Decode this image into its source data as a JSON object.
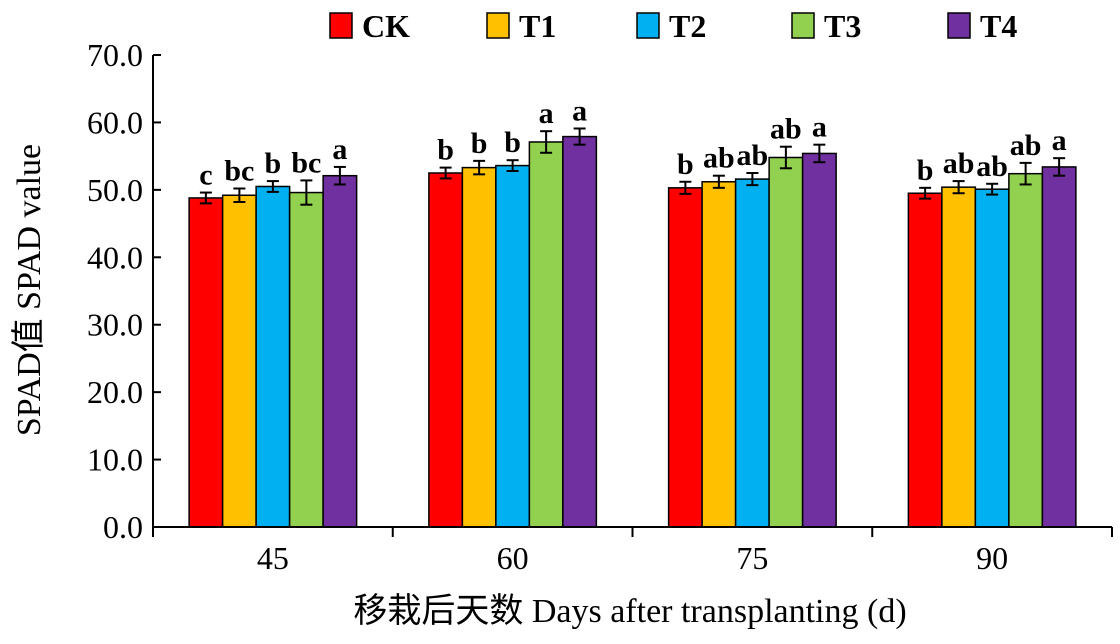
{
  "chart_data": {
    "type": "bar",
    "xlabel": "移栽后天数 Days after transplanting (d)",
    "ylabel": "SPAD值 SPAD value",
    "categories": [
      "45",
      "60",
      "75",
      "90"
    ],
    "ylim": [
      0,
      70
    ],
    "yticks": [
      "0.0",
      "10.0",
      "20.0",
      "30.0",
      "40.0",
      "50.0",
      "60.0",
      "70.0"
    ],
    "grid": false,
    "legend": "top",
    "series": [
      {
        "name": "CK",
        "color": "#ff0000",
        "values": [
          48.8,
          52.5,
          50.3,
          49.5
        ],
        "errors": [
          0.8,
          0.8,
          0.9,
          0.8
        ],
        "labels": [
          "c",
          "b",
          "b",
          "b"
        ]
      },
      {
        "name": "T1",
        "color": "#ffc000",
        "values": [
          49.2,
          53.3,
          51.2,
          50.4
        ],
        "errors": [
          1.0,
          1.0,
          0.9,
          0.9
        ],
        "labels": [
          "bc",
          "b",
          "ab",
          "ab"
        ]
      },
      {
        "name": "T2",
        "color": "#00b0f0",
        "values": [
          50.5,
          53.6,
          51.6,
          50.1
        ],
        "errors": [
          0.8,
          0.8,
          0.9,
          0.8
        ],
        "labels": [
          "b",
          "b",
          "ab",
          "ab"
        ]
      },
      {
        "name": "T3",
        "color": "#92d050",
        "values": [
          49.6,
          57.1,
          54.8,
          52.4
        ],
        "errors": [
          1.8,
          1.6,
          1.6,
          1.6
        ],
        "labels": [
          "bc",
          "a",
          "ab",
          "ab"
        ]
      },
      {
        "name": "T4",
        "color": "#7030a0",
        "values": [
          52.1,
          57.9,
          55.4,
          53.4
        ],
        "errors": [
          1.3,
          1.2,
          1.3,
          1.3
        ],
        "labels": [
          "a",
          "a",
          "a",
          "a"
        ]
      }
    ]
  }
}
